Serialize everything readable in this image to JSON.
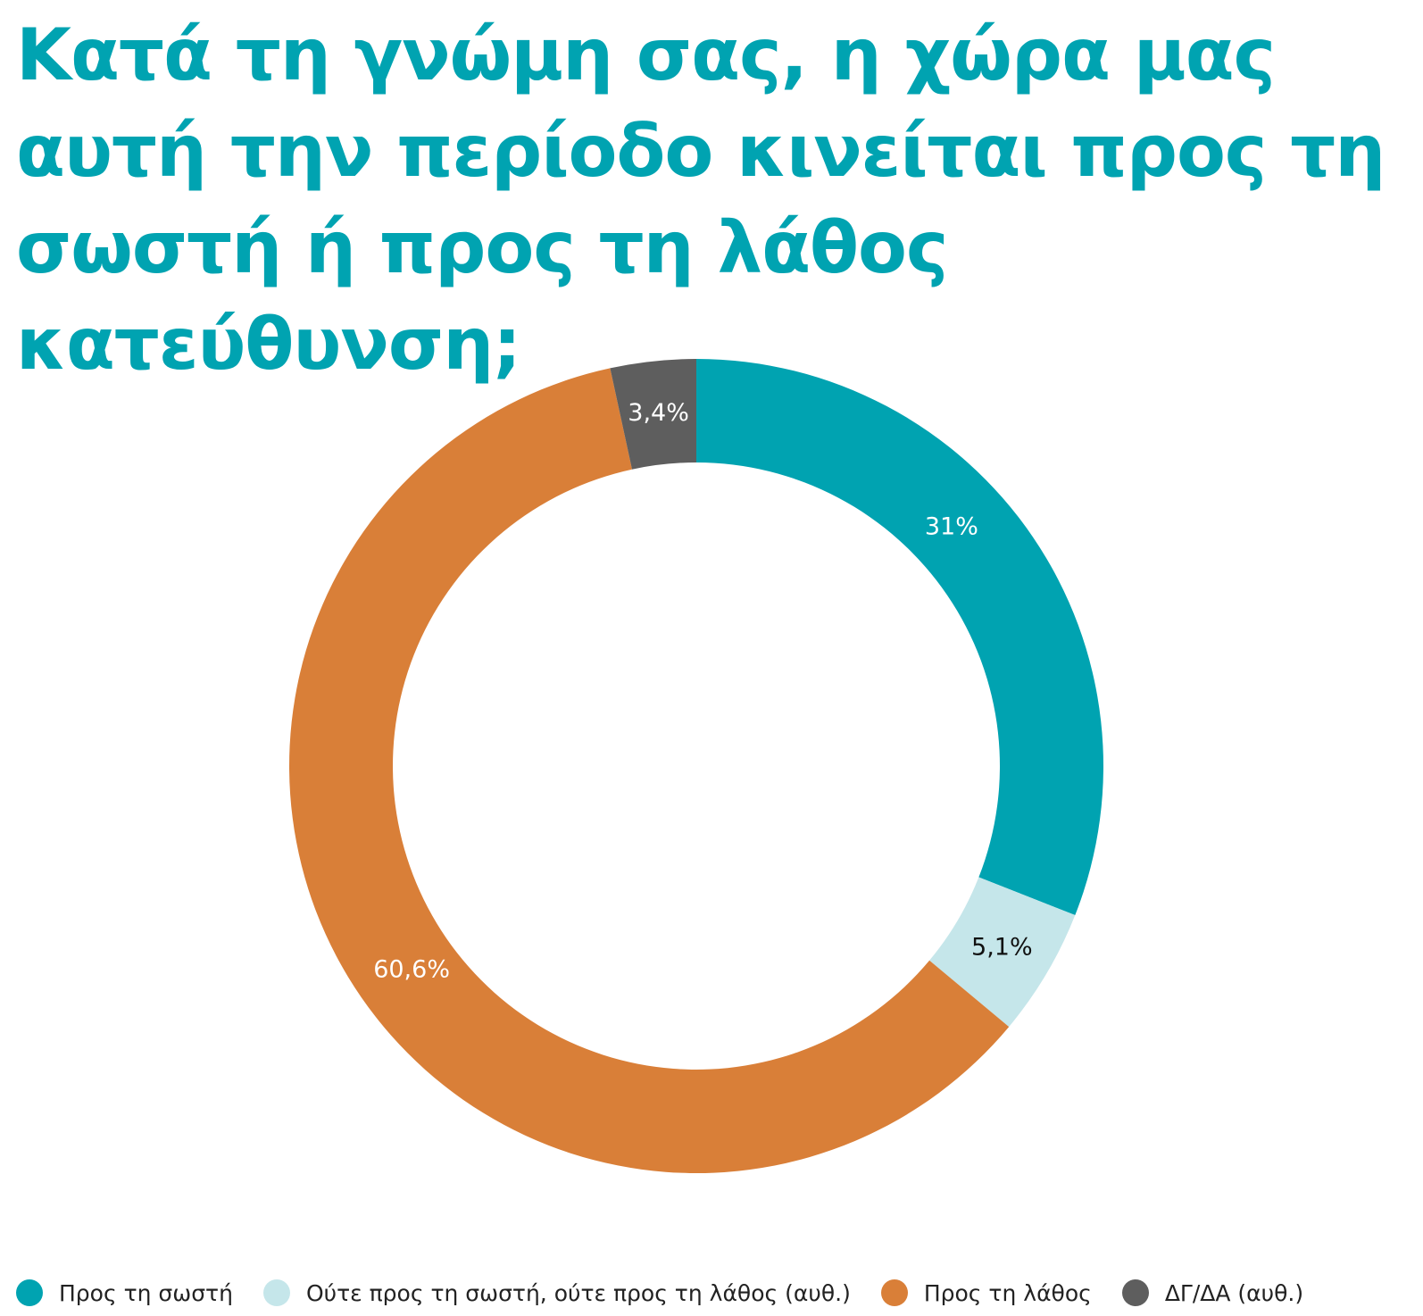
{
  "chart_data": {
    "type": "pie",
    "variant": "donut",
    "title": "Κατά τη γνώμη σας, η χώρα μας αυτή την περίοδο κινείται προς τη σωστή ή προς τη λάθος κατεύθυνση;",
    "legend_position": "bottom",
    "slices": [
      {
        "name": "Προς τη σωστή",
        "value": 31.0,
        "label": "31%",
        "color": "#00a3b1",
        "label_color": "#ffffff"
      },
      {
        "name": "Ούτε προς τη σωστή, ούτε προς τη λάθος (αυθ.)",
        "value": 5.1,
        "label": "5,1%",
        "color": "#c5e6ea",
        "label_color": "#111111"
      },
      {
        "name": "Προς τη λάθος",
        "value": 60.6,
        "label": "60,6%",
        "color": "#d97f38",
        "label_color": "#ffffff"
      },
      {
        "name": "ΔΓ/ΔΑ (αυθ.)",
        "value": 3.4,
        "label": "3,4%",
        "color": "#5e5e5e",
        "label_color": "#ffffff"
      }
    ]
  }
}
